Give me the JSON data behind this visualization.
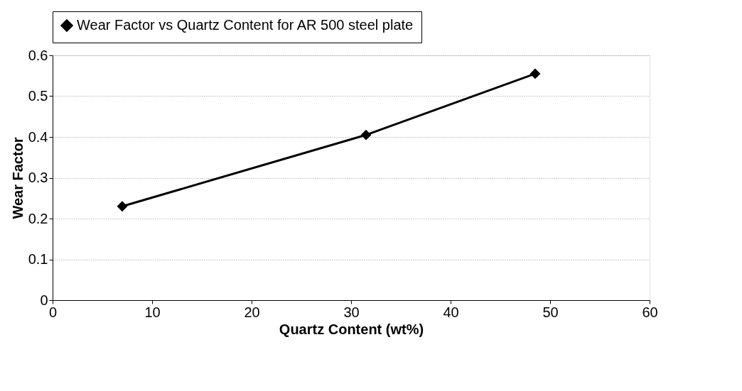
{
  "chart_data": {
    "type": "line",
    "xlabel": "Quartz Content (wt%)",
    "ylabel": "Wear Factor",
    "x": [
      7,
      31.5,
      48.5
    ],
    "series": [
      {
        "name": "Wear Factor vs Quartz Content for AR 500 steel plate",
        "color": "#000000",
        "values": [
          0.23,
          0.405,
          0.555
        ]
      }
    ],
    "xlim": [
      0,
      60
    ],
    "xticks": [
      0,
      10,
      20,
      30,
      40,
      50,
      60
    ],
    "ylim": [
      0,
      0.6
    ],
    "yticks": [
      0,
      0.1,
      0.2,
      0.3,
      0.4,
      0.5,
      0.6
    ],
    "grid": "y",
    "legend": "top",
    "marker": "diamond",
    "line_style": "solid"
  }
}
